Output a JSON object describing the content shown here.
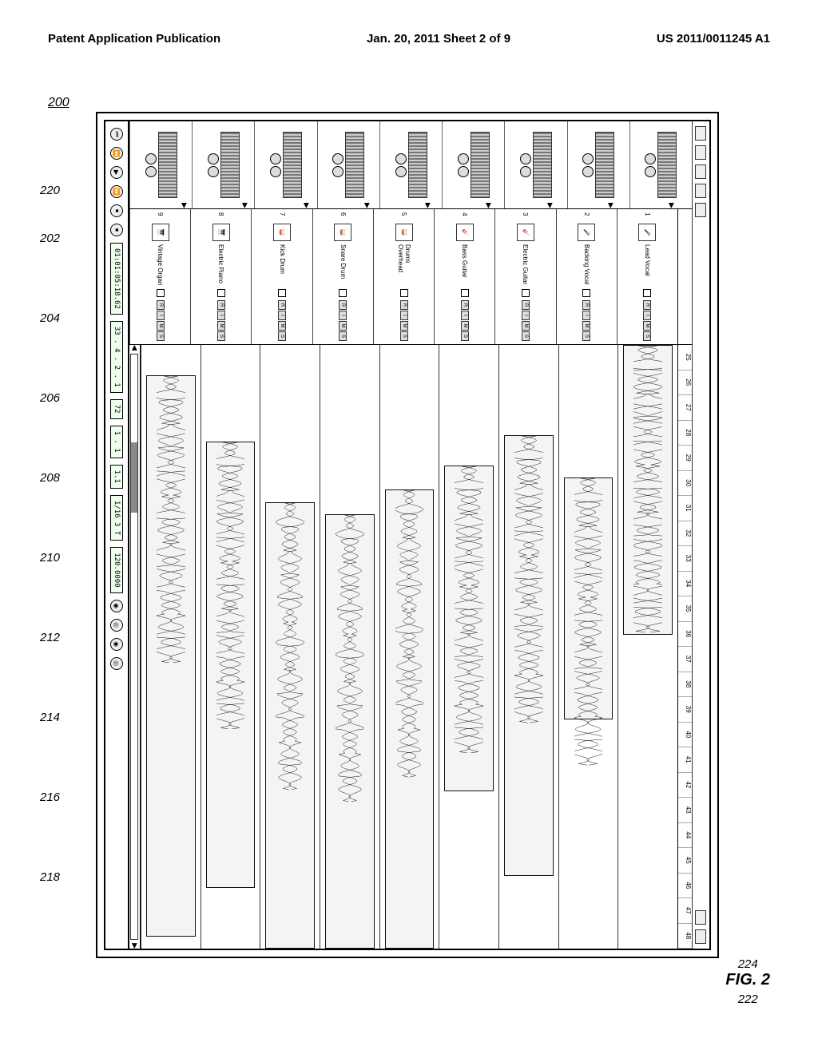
{
  "header": {
    "left": "Patent Application Publication",
    "center": "Jan. 20, 2011  Sheet 2 of 9",
    "right": "US 2011/0011245 A1"
  },
  "figure": {
    "ref_main": "200",
    "timeline_ref": "220",
    "transport_ref": "222",
    "transport_brace_ref": "224",
    "label": "FIG. 2"
  },
  "ruler": {
    "start": 25,
    "end": 48
  },
  "tracks": [
    {
      "num": 1,
      "name": "Lead Vocal",
      "ref": "202",
      "clip": {
        "start": 0.0,
        "end": 0.48
      },
      "icon": "🎤"
    },
    {
      "num": 2,
      "name": "Backing Vocal",
      "ref": "204",
      "clip": {
        "start": 0.22,
        "end": 0.62
      },
      "icon": "🎤"
    },
    {
      "num": 3,
      "name": "Electric Guitar",
      "ref": "206",
      "clip": {
        "start": 0.15,
        "end": 0.88
      },
      "icon": "🎸"
    },
    {
      "num": 4,
      "name": "Bass Guitar",
      "ref": "208",
      "clip": {
        "start": 0.2,
        "end": 0.74
      },
      "icon": "🎸"
    },
    {
      "num": 5,
      "name": "Drums Overhead",
      "ref": "210",
      "clip": {
        "start": 0.24,
        "end": 1.0
      },
      "icon": "🥁"
    },
    {
      "num": 6,
      "name": "Snare Drum",
      "ref": "212",
      "clip": {
        "start": 0.28,
        "end": 1.0
      },
      "icon": "🥁"
    },
    {
      "num": 7,
      "name": "Kick Drum",
      "ref": "214",
      "clip": {
        "start": 0.26,
        "end": 1.0
      },
      "icon": "🥁"
    },
    {
      "num": 8,
      "name": "Electric Piano",
      "ref": "216",
      "clip": {
        "start": 0.16,
        "end": 0.9
      },
      "icon": "🎹"
    },
    {
      "num": 9,
      "name": "Vintage Organ",
      "ref": "218",
      "clip": {
        "start": 0.05,
        "end": 0.98
      },
      "icon": "🎹"
    }
  ],
  "track_buttons": [
    "R",
    "I",
    "M",
    "S"
  ],
  "transport": {
    "buttons_left": [
      "⏮",
      "⏪",
      "▶",
      "⏩",
      "⏺",
      "⏹"
    ],
    "time": "01:01:05:18.62",
    "bars": "33 . 4 . 2 . 1",
    "meter_a": "72",
    "meter_b": "1 . 1",
    "meter_c": "1.1",
    "meter_d": "1/16 3 T",
    "tempo": "120.0000",
    "buttons_right": [
      "◉",
      "◎",
      "◉",
      "◎"
    ]
  },
  "scroll": {
    "thumb_left": 0.15,
    "thumb_width": 0.12
  },
  "colors": {
    "border": "#000000",
    "bg": "#ffffff",
    "clip_bg": "#f4f4f4",
    "btn_bg": "#dddddd",
    "rack": "#888888"
  }
}
